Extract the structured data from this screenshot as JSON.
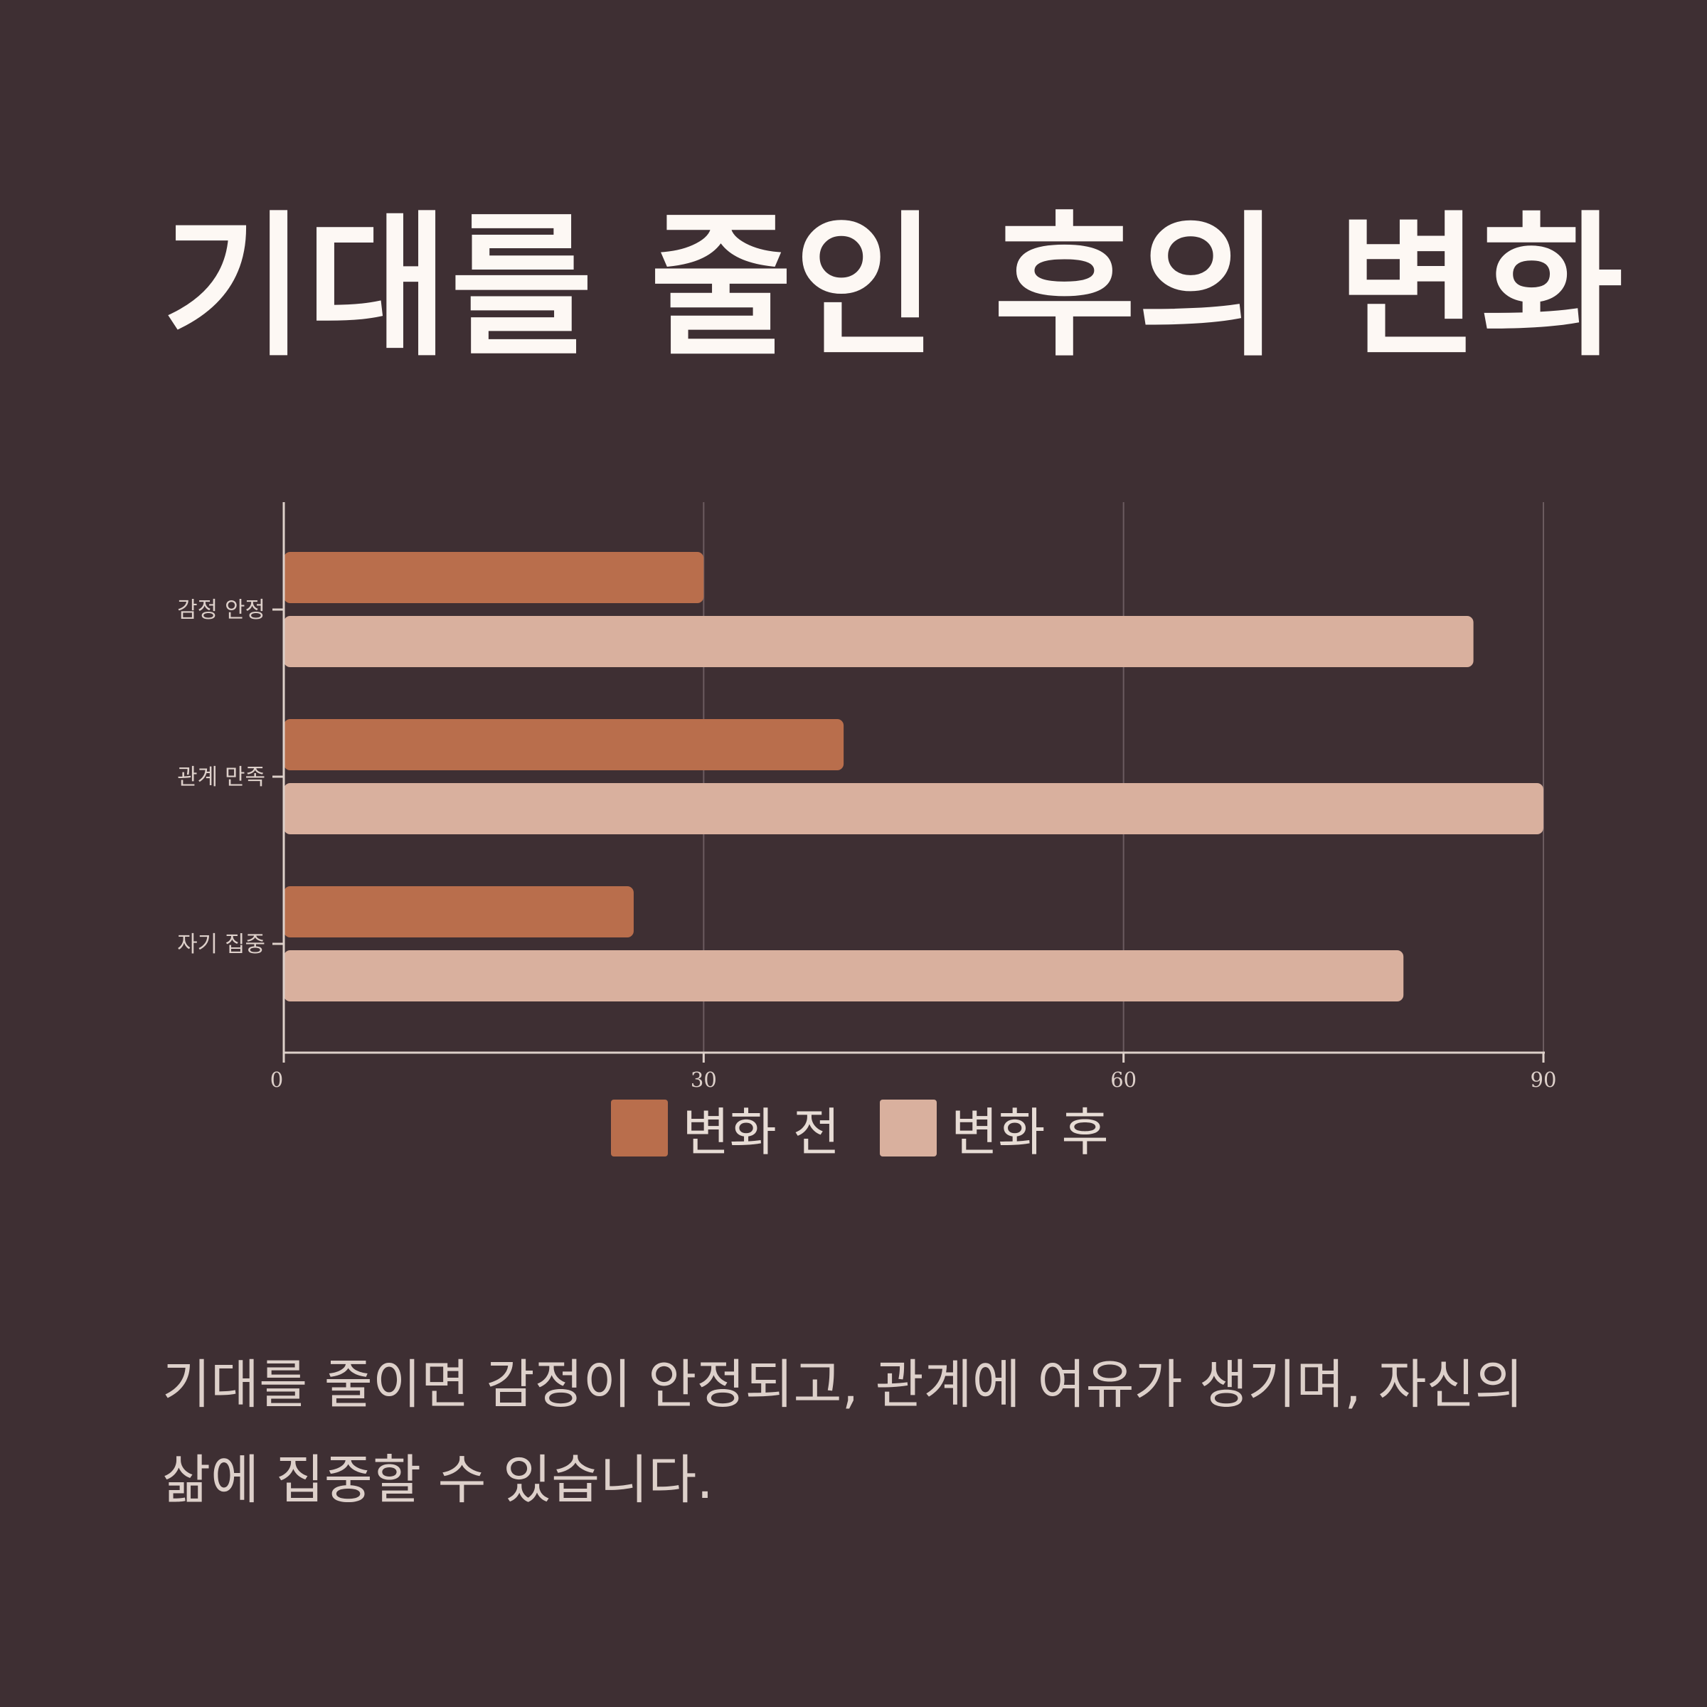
{
  "title": "기대를 줄인 후의 변화",
  "caption": "기대를 줄이면 감정이 안정되고, 관계에 여유가 생기며, 자신의 삶에 집중할 수 있습니다.",
  "colors": {
    "background": "#3e2f33",
    "before": "#b96e4c",
    "after": "#d9b09e",
    "axis": "#ddd0ca",
    "grid": "#6b5b5f"
  },
  "chart_data": {
    "type": "bar",
    "orientation": "horizontal",
    "categories": [
      "감정 안정",
      "관계 만족",
      "자기 집중"
    ],
    "series": [
      {
        "name": "변화 전",
        "values": [
          30,
          40,
          25
        ]
      },
      {
        "name": "변화 후",
        "values": [
          85,
          90,
          80
        ]
      }
    ],
    "xlim": [
      0,
      90
    ],
    "xticks": [
      "0",
      "30",
      "60",
      "90"
    ],
    "grid": "vertical",
    "legend": "bottom-center",
    "title": "",
    "xlabel": "",
    "ylabel": ""
  }
}
